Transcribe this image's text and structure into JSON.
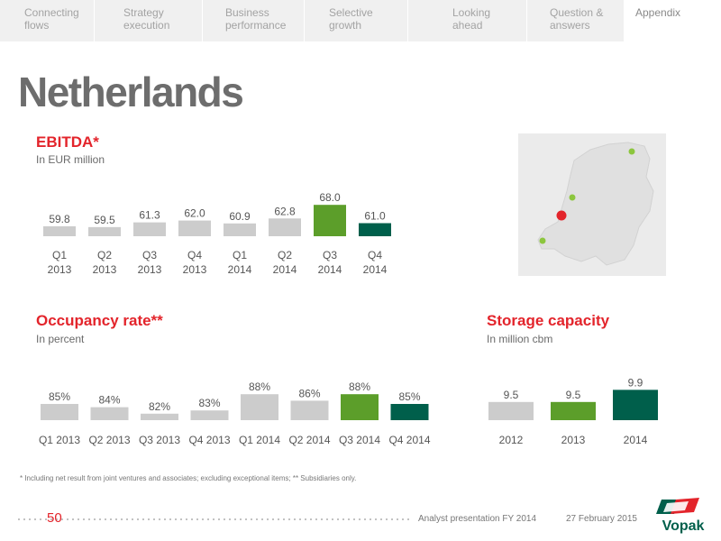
{
  "nav": {
    "tabs": [
      {
        "line1": "Connecting",
        "line2": "flows"
      },
      {
        "line1": "Strategy",
        "line2": "execution"
      },
      {
        "line1": "Business",
        "line2": "performance"
      },
      {
        "line1": "Selective",
        "line2": "growth"
      },
      {
        "line1": "Looking",
        "line2": "ahead"
      },
      {
        "line1": "Question &",
        "line2": "answers"
      },
      {
        "line1": "Appendix",
        "line2": ""
      }
    ],
    "active_tab": "Appendix"
  },
  "page": {
    "title": "Netherlands"
  },
  "colors": {
    "grey_bar": "#cccccc",
    "green_bar": "#5c9e2a",
    "dark_green_bar": "#005f4b",
    "accent_red": "#e3242b"
  },
  "map": {
    "marker_colors": [
      "#8cc63e",
      "#e3242b"
    ]
  },
  "chart_data": [
    {
      "type": "bar",
      "title": "EBITDA*",
      "subtitle": "In EUR million",
      "categories": [
        [
          "Q1",
          "2013"
        ],
        [
          "Q2",
          "2013"
        ],
        [
          "Q3",
          "2013"
        ],
        [
          "Q4",
          "2013"
        ],
        [
          "Q1",
          "2014"
        ],
        [
          "Q2",
          "2014"
        ],
        [
          "Q3",
          "2014"
        ],
        [
          "Q4",
          "2014"
        ]
      ],
      "values": [
        59.8,
        59.5,
        61.3,
        62.0,
        60.9,
        62.8,
        68.0,
        61.0
      ],
      "value_labels": [
        "59.8",
        "59.5",
        "61.3",
        "62.0",
        "60.9",
        "62.8",
        "68.0",
        "61.0"
      ],
      "colors": [
        "#cccccc",
        "#cccccc",
        "#cccccc",
        "#cccccc",
        "#cccccc",
        "#cccccc",
        "#5c9e2a",
        "#005f4b"
      ],
      "ylim": [
        56,
        76
      ],
      "grid": false
    },
    {
      "type": "bar",
      "title": "Occupancy rate**",
      "subtitle": "In percent",
      "categories": [
        "Q1 2013",
        "Q2 2013",
        "Q3 2013",
        "Q4 2013",
        "Q1 2014",
        "Q2 2014",
        "Q3 2014",
        "Q4 2014"
      ],
      "values": [
        85,
        84,
        82,
        83,
        88,
        86,
        88,
        85
      ],
      "value_labels": [
        "85%",
        "84%",
        "82%",
        "83%",
        "88%",
        "86%",
        "88%",
        "85%"
      ],
      "colors": [
        "#cccccc",
        "#cccccc",
        "#cccccc",
        "#cccccc",
        "#cccccc",
        "#cccccc",
        "#5c9e2a",
        "#005f4b"
      ],
      "ylim": [
        80,
        90
      ],
      "grid": false
    },
    {
      "type": "bar",
      "title": "Storage capacity",
      "subtitle": "In million cbm",
      "categories": [
        "2012",
        "2013",
        "2014"
      ],
      "values": [
        9.5,
        9.5,
        9.9
      ],
      "value_labels": [
        "9.5",
        "9.5",
        "9.9"
      ],
      "colors": [
        "#cccccc",
        "#5c9e2a",
        "#005f4b"
      ],
      "ylim": [
        8.9,
        10.0
      ],
      "grid": false
    }
  ],
  "footer": {
    "footnote": "* Including net result from joint ventures and associates; excluding exceptional items; ** Subsidiaries only.",
    "page_number": "50",
    "presentation": "Analyst presentation FY 2014",
    "date": "27 February 2015",
    "logo_text": "Vopak"
  }
}
